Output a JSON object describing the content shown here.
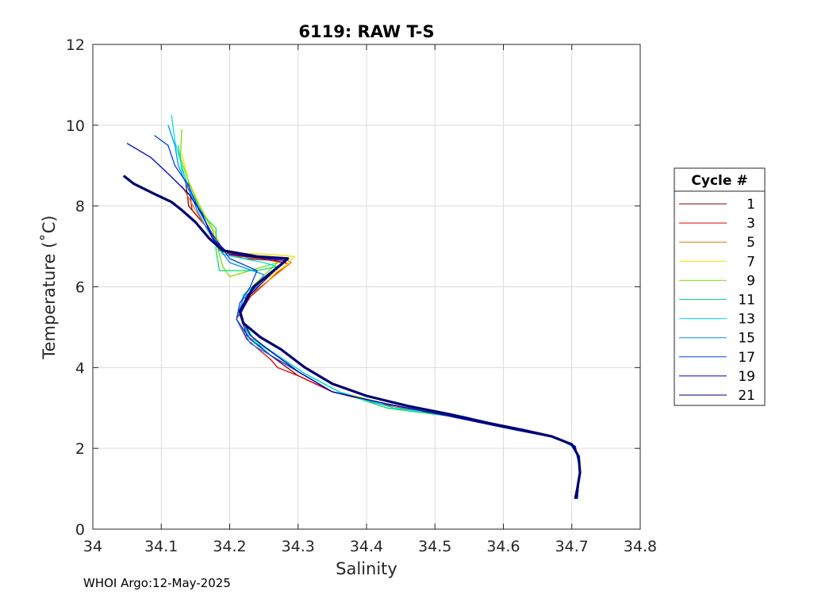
{
  "chart_data": {
    "type": "line",
    "title": "6119: RAW T-S",
    "xlabel": "Salinity",
    "ylabel": "Temperature (˚C)",
    "xlim": [
      34,
      34.8
    ],
    "ylim": [
      0,
      12
    ],
    "xticks": [
      "34",
      "34.1",
      "34.2",
      "34.3",
      "34.4",
      "34.5",
      "34.6",
      "34.7",
      "34.8"
    ],
    "yticks": [
      "0",
      "2",
      "4",
      "6",
      "8",
      "10",
      "12"
    ],
    "grid": true,
    "legend_title": "Cycle #",
    "legend_position": "right",
    "series": [
      {
        "name": "1",
        "color": "#8b0000",
        "points": [
          [
            34.135,
            8.7
          ],
          [
            34.14,
            8.0
          ],
          [
            34.175,
            7.3
          ],
          [
            34.185,
            6.9
          ],
          [
            34.22,
            6.7
          ],
          [
            34.265,
            6.65
          ],
          [
            34.28,
            6.6
          ],
          [
            34.225,
            5.8
          ],
          [
            34.215,
            5.3
          ],
          [
            34.225,
            4.8
          ],
          [
            34.26,
            4.3
          ],
          [
            34.28,
            4.05
          ],
          [
            34.3,
            3.8
          ],
          [
            34.35,
            3.4
          ],
          [
            34.42,
            3.1
          ],
          [
            34.52,
            2.8
          ],
          [
            34.62,
            2.45
          ],
          [
            34.68,
            2.25
          ],
          [
            34.705,
            2.0
          ],
          [
            34.712,
            1.5
          ],
          [
            34.708,
            0.75
          ]
        ]
      },
      {
        "name": "3",
        "color": "#e00000",
        "points": [
          [
            34.14,
            8.6
          ],
          [
            34.145,
            7.9
          ],
          [
            34.17,
            7.4
          ],
          [
            34.19,
            6.85
          ],
          [
            34.23,
            6.75
          ],
          [
            34.27,
            6.62
          ],
          [
            34.285,
            6.58
          ],
          [
            34.23,
            5.75
          ],
          [
            34.21,
            5.2
          ],
          [
            34.225,
            4.7
          ],
          [
            34.26,
            4.2
          ],
          [
            34.27,
            4.0
          ],
          [
            34.3,
            3.8
          ],
          [
            34.35,
            3.4
          ],
          [
            34.43,
            3.1
          ],
          [
            34.52,
            2.8
          ],
          [
            34.62,
            2.45
          ],
          [
            34.68,
            2.25
          ],
          [
            34.705,
            2.0
          ],
          [
            34.712,
            1.5
          ],
          [
            34.708,
            0.75
          ]
        ]
      },
      {
        "name": "5",
        "color": "#e87800",
        "points": [
          [
            34.13,
            8.5
          ],
          [
            34.15,
            7.9
          ],
          [
            34.175,
            7.2
          ],
          [
            34.19,
            6.8
          ],
          [
            34.24,
            6.7
          ],
          [
            34.285,
            6.65
          ],
          [
            34.29,
            6.6
          ],
          [
            34.23,
            5.8
          ],
          [
            34.215,
            5.3
          ],
          [
            34.23,
            4.7
          ],
          [
            34.27,
            4.3
          ],
          [
            34.3,
            3.9
          ],
          [
            34.35,
            3.4
          ],
          [
            34.43,
            3.1
          ],
          [
            34.52,
            2.8
          ],
          [
            34.62,
            2.45
          ],
          [
            34.68,
            2.25
          ],
          [
            34.705,
            2.0
          ],
          [
            34.712,
            1.5
          ],
          [
            34.708,
            0.75
          ]
        ]
      },
      {
        "name": "7",
        "color": "#f0e000",
        "points": [
          [
            34.13,
            9.3
          ],
          [
            34.14,
            8.6
          ],
          [
            34.16,
            7.9
          ],
          [
            34.18,
            7.3
          ],
          [
            34.19,
            6.85
          ],
          [
            34.26,
            6.8
          ],
          [
            34.295,
            6.75
          ],
          [
            34.28,
            6.5
          ],
          [
            34.22,
            5.8
          ],
          [
            34.215,
            5.3
          ],
          [
            34.235,
            4.7
          ],
          [
            34.27,
            4.3
          ],
          [
            34.31,
            3.85
          ],
          [
            34.36,
            3.4
          ],
          [
            34.44,
            3.05
          ],
          [
            34.53,
            2.8
          ],
          [
            34.62,
            2.45
          ],
          [
            34.68,
            2.25
          ],
          [
            34.705,
            2.0
          ],
          [
            34.712,
            1.5
          ],
          [
            34.708,
            0.75
          ]
        ]
      },
      {
        "name": "9",
        "color": "#7ce000",
        "points": [
          [
            34.13,
            9.9
          ],
          [
            34.128,
            9.2
          ],
          [
            34.14,
            8.6
          ],
          [
            34.155,
            8.0
          ],
          [
            34.175,
            7.4
          ],
          [
            34.19,
            6.5
          ],
          [
            34.2,
            6.25
          ],
          [
            34.25,
            6.5
          ],
          [
            34.27,
            6.6
          ],
          [
            34.22,
            5.8
          ],
          [
            34.215,
            5.3
          ],
          [
            34.235,
            4.7
          ],
          [
            34.27,
            4.3
          ],
          [
            34.31,
            3.85
          ],
          [
            34.36,
            3.4
          ],
          [
            34.43,
            3.0
          ],
          [
            34.53,
            2.78
          ],
          [
            34.62,
            2.45
          ],
          [
            34.68,
            2.25
          ],
          [
            34.705,
            2.0
          ],
          [
            34.712,
            1.5
          ],
          [
            34.708,
            0.75
          ]
        ]
      },
      {
        "name": "11",
        "color": "#00e070",
        "points": [
          [
            34.125,
            9.5
          ],
          [
            34.13,
            8.9
          ],
          [
            34.145,
            8.3
          ],
          [
            34.165,
            7.7
          ],
          [
            34.18,
            7.45
          ],
          [
            34.18,
            6.9
          ],
          [
            34.185,
            6.4
          ],
          [
            34.24,
            6.4
          ],
          [
            34.27,
            6.5
          ],
          [
            34.22,
            5.8
          ],
          [
            34.215,
            5.3
          ],
          [
            34.235,
            4.7
          ],
          [
            34.27,
            4.3
          ],
          [
            34.31,
            3.85
          ],
          [
            34.36,
            3.4
          ],
          [
            34.43,
            3.0
          ],
          [
            34.53,
            2.78
          ],
          [
            34.62,
            2.45
          ],
          [
            34.68,
            2.25
          ],
          [
            34.705,
            2.0
          ],
          [
            34.712,
            1.5
          ],
          [
            34.708,
            0.75
          ]
        ]
      },
      {
        "name": "13",
        "color": "#00e0e0",
        "points": [
          [
            34.115,
            10.25
          ],
          [
            34.12,
            9.6
          ],
          [
            34.13,
            9.0
          ],
          [
            34.14,
            8.4
          ],
          [
            34.16,
            7.8
          ],
          [
            34.175,
            7.2
          ],
          [
            34.19,
            6.8
          ],
          [
            34.25,
            6.6
          ],
          [
            34.27,
            6.5
          ],
          [
            34.22,
            5.8
          ],
          [
            34.215,
            5.3
          ],
          [
            34.23,
            4.7
          ],
          [
            34.27,
            4.3
          ],
          [
            34.31,
            3.85
          ],
          [
            34.36,
            3.4
          ],
          [
            34.44,
            3.0
          ],
          [
            34.54,
            2.8
          ],
          [
            34.62,
            2.45
          ],
          [
            34.68,
            2.25
          ],
          [
            34.705,
            2.0
          ],
          [
            34.712,
            1.5
          ],
          [
            34.708,
            0.75
          ]
        ]
      },
      {
        "name": "15",
        "color": "#0090ff",
        "points": [
          [
            34.11,
            10.0
          ],
          [
            34.12,
            9.5
          ],
          [
            34.125,
            9.0
          ],
          [
            34.14,
            8.4
          ],
          [
            34.155,
            7.8
          ],
          [
            34.175,
            7.2
          ],
          [
            34.2,
            6.6
          ],
          [
            34.25,
            6.3
          ],
          [
            34.24,
            6.0
          ],
          [
            34.22,
            5.7
          ],
          [
            34.21,
            5.2
          ],
          [
            34.23,
            4.6
          ],
          [
            34.26,
            4.3
          ],
          [
            34.3,
            3.9
          ],
          [
            34.35,
            3.4
          ],
          [
            34.43,
            3.1
          ],
          [
            34.52,
            2.8
          ],
          [
            34.62,
            2.45
          ],
          [
            34.68,
            2.25
          ],
          [
            34.705,
            2.05
          ],
          [
            34.712,
            1.5
          ],
          [
            34.708,
            0.75
          ]
        ]
      },
      {
        "name": "17",
        "color": "#0040f0",
        "points": [
          [
            34.09,
            9.75
          ],
          [
            34.11,
            9.5
          ],
          [
            34.12,
            9.0
          ],
          [
            34.14,
            8.5
          ],
          [
            34.155,
            7.9
          ],
          [
            34.175,
            7.3
          ],
          [
            34.2,
            6.7
          ],
          [
            34.24,
            6.4
          ],
          [
            34.23,
            6.0
          ],
          [
            34.215,
            5.6
          ],
          [
            34.21,
            5.2
          ],
          [
            34.23,
            4.7
          ],
          [
            34.26,
            4.3
          ],
          [
            34.3,
            3.9
          ],
          [
            34.35,
            3.4
          ],
          [
            34.43,
            3.1
          ],
          [
            34.52,
            2.8
          ],
          [
            34.62,
            2.45
          ],
          [
            34.68,
            2.25
          ],
          [
            34.705,
            2.05
          ],
          [
            34.712,
            1.5
          ],
          [
            34.708,
            0.75
          ]
        ]
      },
      {
        "name": "19",
        "color": "#0000c8",
        "points": [
          [
            34.05,
            9.55
          ],
          [
            34.085,
            9.2
          ],
          [
            34.11,
            8.8
          ],
          [
            34.14,
            8.3
          ],
          [
            34.16,
            7.8
          ],
          [
            34.175,
            7.2
          ],
          [
            34.2,
            6.8
          ],
          [
            34.25,
            6.7
          ],
          [
            34.28,
            6.65
          ],
          [
            34.23,
            5.8
          ],
          [
            34.215,
            5.3
          ],
          [
            34.23,
            4.8
          ],
          [
            34.26,
            4.4
          ],
          [
            34.3,
            3.9
          ],
          [
            34.35,
            3.4
          ],
          [
            34.43,
            3.1
          ],
          [
            34.52,
            2.8
          ],
          [
            34.62,
            2.45
          ],
          [
            34.68,
            2.25
          ],
          [
            34.705,
            2.05
          ],
          [
            34.712,
            1.5
          ],
          [
            34.708,
            0.75
          ]
        ]
      },
      {
        "name": "21",
        "color": "#000070",
        "points": [
          [
            34.045,
            8.75
          ],
          [
            34.06,
            8.55
          ],
          [
            34.09,
            8.3
          ],
          [
            34.115,
            8.1
          ],
          [
            34.13,
            7.9
          ],
          [
            34.15,
            7.6
          ],
          [
            34.17,
            7.2
          ],
          [
            34.19,
            6.9
          ],
          [
            34.24,
            6.75
          ],
          [
            34.285,
            6.7
          ],
          [
            34.275,
            6.55
          ],
          [
            34.235,
            6.0
          ],
          [
            34.215,
            5.4
          ],
          [
            34.22,
            5.1
          ],
          [
            34.245,
            4.75
          ],
          [
            34.275,
            4.45
          ],
          [
            34.31,
            4.0
          ],
          [
            34.35,
            3.6
          ],
          [
            34.4,
            3.3
          ],
          [
            34.46,
            3.05
          ],
          [
            34.52,
            2.85
          ],
          [
            34.58,
            2.62
          ],
          [
            34.63,
            2.45
          ],
          [
            34.67,
            2.3
          ],
          [
            34.7,
            2.1
          ],
          [
            34.71,
            1.8
          ],
          [
            34.712,
            1.4
          ],
          [
            34.708,
            1.0
          ],
          [
            34.705,
            0.75
          ]
        ]
      }
    ]
  },
  "credit": "WHOI Argo:12-May-2025"
}
